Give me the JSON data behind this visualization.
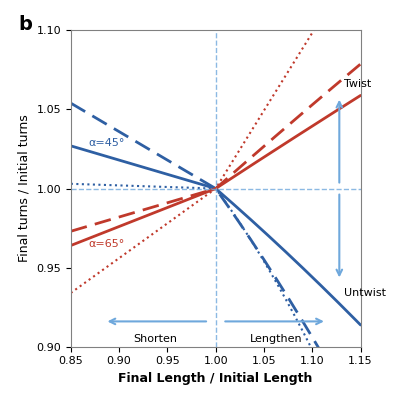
{
  "title_label": "b",
  "xlabel": "Final Length / Initial Length",
  "ylabel": "Final turns / Initial turns",
  "xlim": [
    0.85,
    1.15
  ],
  "ylim": [
    0.9,
    1.1
  ],
  "xticks": [
    0.85,
    0.9,
    0.95,
    1.0,
    1.05,
    1.1,
    1.15
  ],
  "yticks": [
    0.9,
    0.95,
    1.0,
    1.05,
    1.1
  ],
  "vline_x": 1.0,
  "hline_y": 1.0,
  "blue_color": "#2E5FA3",
  "red_color": "#C0392B",
  "arrow_color": "#6FA8DC",
  "alpha_blue_label": "α=45°",
  "alpha_red_label": "α=65°",
  "shorten_label": "Shorten",
  "lengthen_label": "Lengthen",
  "twist_label": "Twist",
  "untwist_label": "Untwist"
}
